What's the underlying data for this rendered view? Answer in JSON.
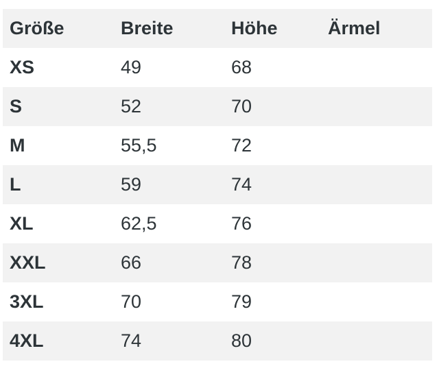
{
  "chart_data": {
    "type": "table",
    "title": "",
    "columns": [
      {
        "key": "size",
        "label": "Größe"
      },
      {
        "key": "width",
        "label": "Breite"
      },
      {
        "key": "height",
        "label": "Höhe"
      },
      {
        "key": "sleeve",
        "label": "Ärmel"
      }
    ],
    "rows": [
      {
        "size": "XS",
        "width": "49",
        "height": "68",
        "sleeve": ""
      },
      {
        "size": "S",
        "width": "52",
        "height": "70",
        "sleeve": ""
      },
      {
        "size": "M",
        "width": "55,5",
        "height": "72",
        "sleeve": ""
      },
      {
        "size": "L",
        "width": "59",
        "height": "74",
        "sleeve": ""
      },
      {
        "size": "XL",
        "width": "62,5",
        "height": "76",
        "sleeve": ""
      },
      {
        "size": "XXL",
        "width": "66",
        "height": "78",
        "sleeve": ""
      },
      {
        "size": "3XL",
        "width": "70",
        "height": "79",
        "sleeve": ""
      },
      {
        "size": "4XL",
        "width": "74",
        "height": "80",
        "sleeve": ""
      }
    ]
  },
  "colors": {
    "stripe": "#f2f2f2",
    "text": "#2d3438",
    "background": "#ffffff"
  }
}
